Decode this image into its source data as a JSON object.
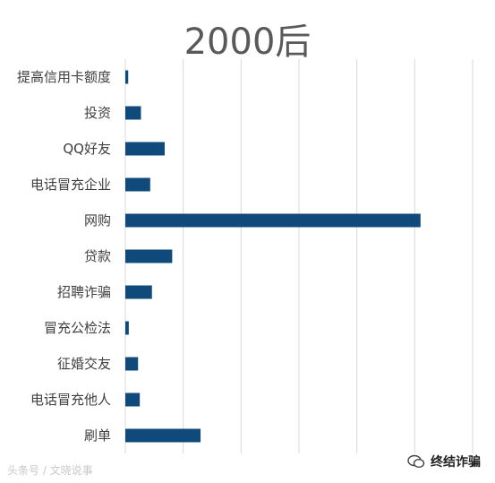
{
  "chart_data": {
    "type": "bar",
    "orientation": "horizontal",
    "title": "2000后",
    "categories": [
      "提高信用卡额度",
      "投资",
      "QQ好友",
      "电话冒充企业",
      "网购",
      "贷款",
      "招聘诈骗",
      "冒充公检法",
      "征婚交友",
      "电话冒充他人",
      "刷单"
    ],
    "values": [
      0.5,
      2.7,
      6.8,
      4.3,
      51.0,
      8.1,
      4.6,
      0.6,
      2.2,
      2.5,
      13.0
    ],
    "xlim": [
      0,
      60
    ],
    "grid": true,
    "bar_color": "#0f4a7a"
  },
  "watermarks": {
    "left": "头条号 / 文晓说事",
    "right": "终结诈骗"
  }
}
